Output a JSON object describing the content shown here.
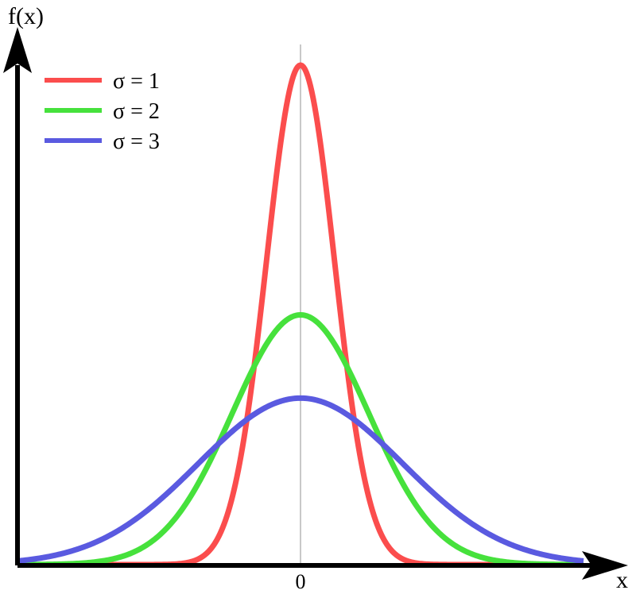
{
  "chart_data": {
    "type": "line",
    "xlabel": "x",
    "ylabel": "f(x)",
    "x_ticks": [
      {
        "value": 0,
        "label": "0"
      }
    ],
    "xlim": [
      -8.3,
      8.3
    ],
    "ylim": [
      0,
      0.42
    ],
    "grid": false,
    "zero_line": true,
    "legend_position": "top-left",
    "series": [
      {
        "name": "σ = 1",
        "sigma": 1,
        "color": "#fb4d4d"
      },
      {
        "name": "σ = 2",
        "sigma": 2,
        "color": "#46e13c"
      },
      {
        "name": "σ = 3",
        "sigma": 3,
        "color": "#5a5ae0"
      }
    ]
  }
}
